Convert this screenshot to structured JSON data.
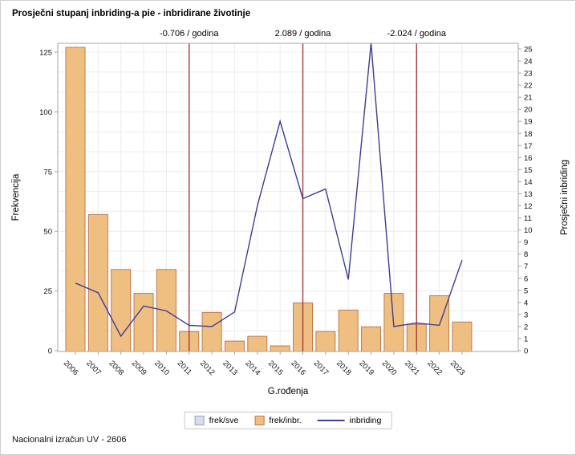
{
  "footer": "Nacionalni izračun UV - 2606",
  "colors": {
    "bar_fill": "#EFBF82",
    "bar_stroke": "#C0794D",
    "line": "#3C3C94",
    "reference_line": "#A33B3B",
    "grid": "#ECECEC",
    "axis": "#A6A6A6",
    "tick_text": "#111111",
    "legend_sve_fill": "#D9DCEA",
    "legend_sve_stroke": "#9AA1BC"
  },
  "legend": {
    "items": [
      {
        "label": "frek/sve",
        "swatch": "gray-box"
      },
      {
        "label": "frek/inbr.",
        "swatch": "orange-box"
      },
      {
        "label": "inbriding",
        "swatch": "line"
      }
    ]
  },
  "chart_data": {
    "type": "bar+line",
    "title": "Prosječni stupanj inbriding-a pie - inbridirane životinje",
    "categories": [
      "2006",
      "2007",
      "2008",
      "2009",
      "2010",
      "2011",
      "2012",
      "2013",
      "2014",
      "2015",
      "2016",
      "2017",
      "2018",
      "2019",
      "2020",
      "2021",
      "2022",
      "2023"
    ],
    "series": [
      {
        "name": "frek/inbr.",
        "type": "bar",
        "axis": "left",
        "values": [
          127,
          57,
          34,
          24,
          34,
          8,
          16,
          4,
          6,
          2,
          20,
          8,
          17,
          10,
          24,
          11,
          23,
          12
        ]
      },
      {
        "name": "inbriding",
        "type": "line",
        "axis": "right",
        "values": [
          5.6,
          4.8,
          1.2,
          3.7,
          3.3,
          2.1,
          2.0,
          3.2,
          12.0,
          19.0,
          12.6,
          13.4,
          5.9,
          25.5,
          2.0,
          2.3,
          2.1,
          7.5
        ]
      }
    ],
    "reference_lines": [
      {
        "category": "2011",
        "label": "-0.706 / godina"
      },
      {
        "category": "2016",
        "label": "2.089 / godina"
      },
      {
        "category": "2021",
        "label": "-2.024 / godina"
      }
    ],
    "axes": {
      "x": {
        "label": "G.rođenja"
      },
      "left": {
        "label": "Frekvencija",
        "ticks": [
          0,
          25,
          50,
          75,
          100,
          125
        ],
        "range": [
          0,
          128
        ]
      },
      "right": {
        "label": "Prosječni inbriding",
        "tick_min": 0,
        "tick_max": 25,
        "tick_step": 1,
        "range": [
          0,
          25.6
        ]
      }
    },
    "grid": true,
    "legend_position": "bottom"
  }
}
